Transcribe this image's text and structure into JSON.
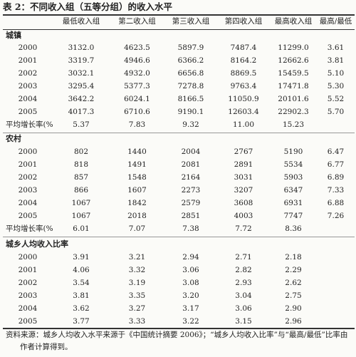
{
  "title": "表 2：不同收入组（五等分组）的收入水平",
  "headers": [
    "",
    "最低收入组",
    "第二收入组",
    "第三收入组",
    "第四收入组",
    "最高收入组",
    "最高/最低"
  ],
  "sections": [
    {
      "name": "城镇",
      "rows": [
        [
          "2000",
          "3132.0",
          "4623.5",
          "5897.9",
          "7487.4",
          "11299.0",
          "3.61"
        ],
        [
          "2001",
          "3319.7",
          "4946.6",
          "6366.2",
          "8164.2",
          "12662.6",
          "3.81"
        ],
        [
          "2002",
          "3032.1",
          "4932.0",
          "6656.8",
          "8869.5",
          "15459.5",
          "5.10"
        ],
        [
          "2003",
          "3295.4",
          "5377.3",
          "7278.8",
          "9763.4",
          "17471.8",
          "5.30"
        ],
        [
          "2004",
          "3642.2",
          "6024.1",
          "8166.5",
          "11050.9",
          "20101.6",
          "5.52"
        ],
        [
          "2005",
          "4017.3",
          "6710.6",
          "9190.1",
          "12603.4",
          "22902.3",
          "5.70"
        ]
      ],
      "avg": [
        "平均增长率(%)",
        "5.37",
        "7.83",
        "9.32",
        "11.00",
        "15.23",
        ""
      ]
    },
    {
      "name": "农村",
      "rows": [
        [
          "2000",
          "802",
          "1440",
          "2004",
          "2767",
          "5190",
          "6.47"
        ],
        [
          "2001",
          "818",
          "1491",
          "2081",
          "2891",
          "5534",
          "6.77"
        ],
        [
          "2002",
          "857",
          "1548",
          "2164",
          "3031",
          "5903",
          "6.89"
        ],
        [
          "2003",
          "866",
          "1607",
          "2273",
          "3207",
          "6347",
          "7.33"
        ],
        [
          "2004",
          "1067",
          "1842",
          "2579",
          "3608",
          "6931",
          "6.88"
        ],
        [
          "2005",
          "1067",
          "2018",
          "2851",
          "4003",
          "7747",
          "7.26"
        ]
      ],
      "avg": [
        "平均增长率(%)",
        "6.01",
        "7.07",
        "7.38",
        "7.72",
        "8.36",
        ""
      ]
    },
    {
      "name": "城乡人均收入比率",
      "rows": [
        [
          "2000",
          "3.91",
          "3.21",
          "2.94",
          "2.71",
          "2.18",
          ""
        ],
        [
          "2001",
          "4.06",
          "3.32",
          "3.06",
          "2.82",
          "2.29",
          ""
        ],
        [
          "2002",
          "3.54",
          "3.19",
          "3.08",
          "2.93",
          "2.62",
          ""
        ],
        [
          "2003",
          "3.81",
          "3.35",
          "3.20",
          "3.04",
          "2.75",
          ""
        ],
        [
          "2004",
          "3.62",
          "3.27",
          "3.17",
          "3.06",
          "2.90",
          ""
        ],
        [
          "2005",
          "3.77",
          "3.33",
          "3.22",
          "3.15",
          "2.96",
          ""
        ]
      ]
    }
  ],
  "note": {
    "line1": "资料来源：城乡人均收入水平来源于《中国统计摘要 2006》；“城乡人均收入比率”与“最高/最低”比率由",
    "line2": "作者计算得到。"
  }
}
